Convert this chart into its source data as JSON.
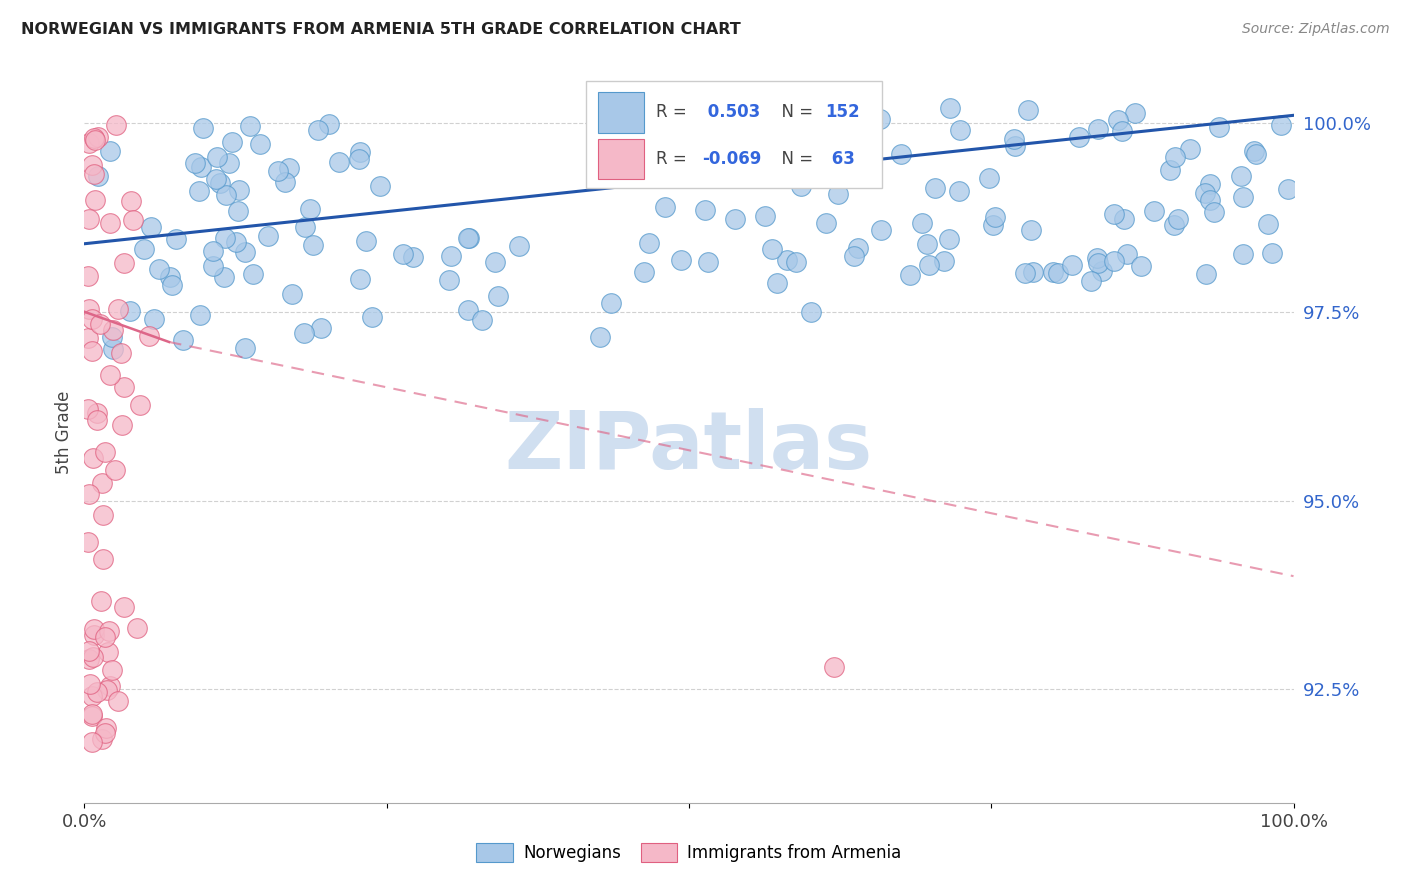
{
  "title": "NORWEGIAN VS IMMIGRANTS FROM ARMENIA 5TH GRADE CORRELATION CHART",
  "source": "Source: ZipAtlas.com",
  "ylabel": "5th Grade",
  "xlim": [
    0.0,
    1.0
  ],
  "ylim": [
    0.91,
    1.008
  ],
  "yticks": [
    0.925,
    0.95,
    0.975,
    1.0
  ],
  "ytick_labels": [
    "92.5%",
    "95.0%",
    "97.5%",
    "100.0%"
  ],
  "norwegian_color": "#a8c8e8",
  "norwegian_edge": "#5599cc",
  "armenian_color": "#f5b8c8",
  "armenian_edge": "#e06080",
  "trend_blue": "#2255aa",
  "trend_pink": "#dd6688",
  "background": "#ffffff",
  "watermark": "ZIPatlas",
  "watermark_color": "#d0dff0",
  "legend_blue_r": "0.503",
  "legend_blue_n": "152",
  "legend_pink_r": "-0.069",
  "legend_pink_n": " 63",
  "r_color": "#3366dd",
  "n_color": "#3366dd",
  "label_color": "#555555",
  "ytick_color": "#3366cc",
  "source_color": "#888888",
  "title_color": "#222222"
}
